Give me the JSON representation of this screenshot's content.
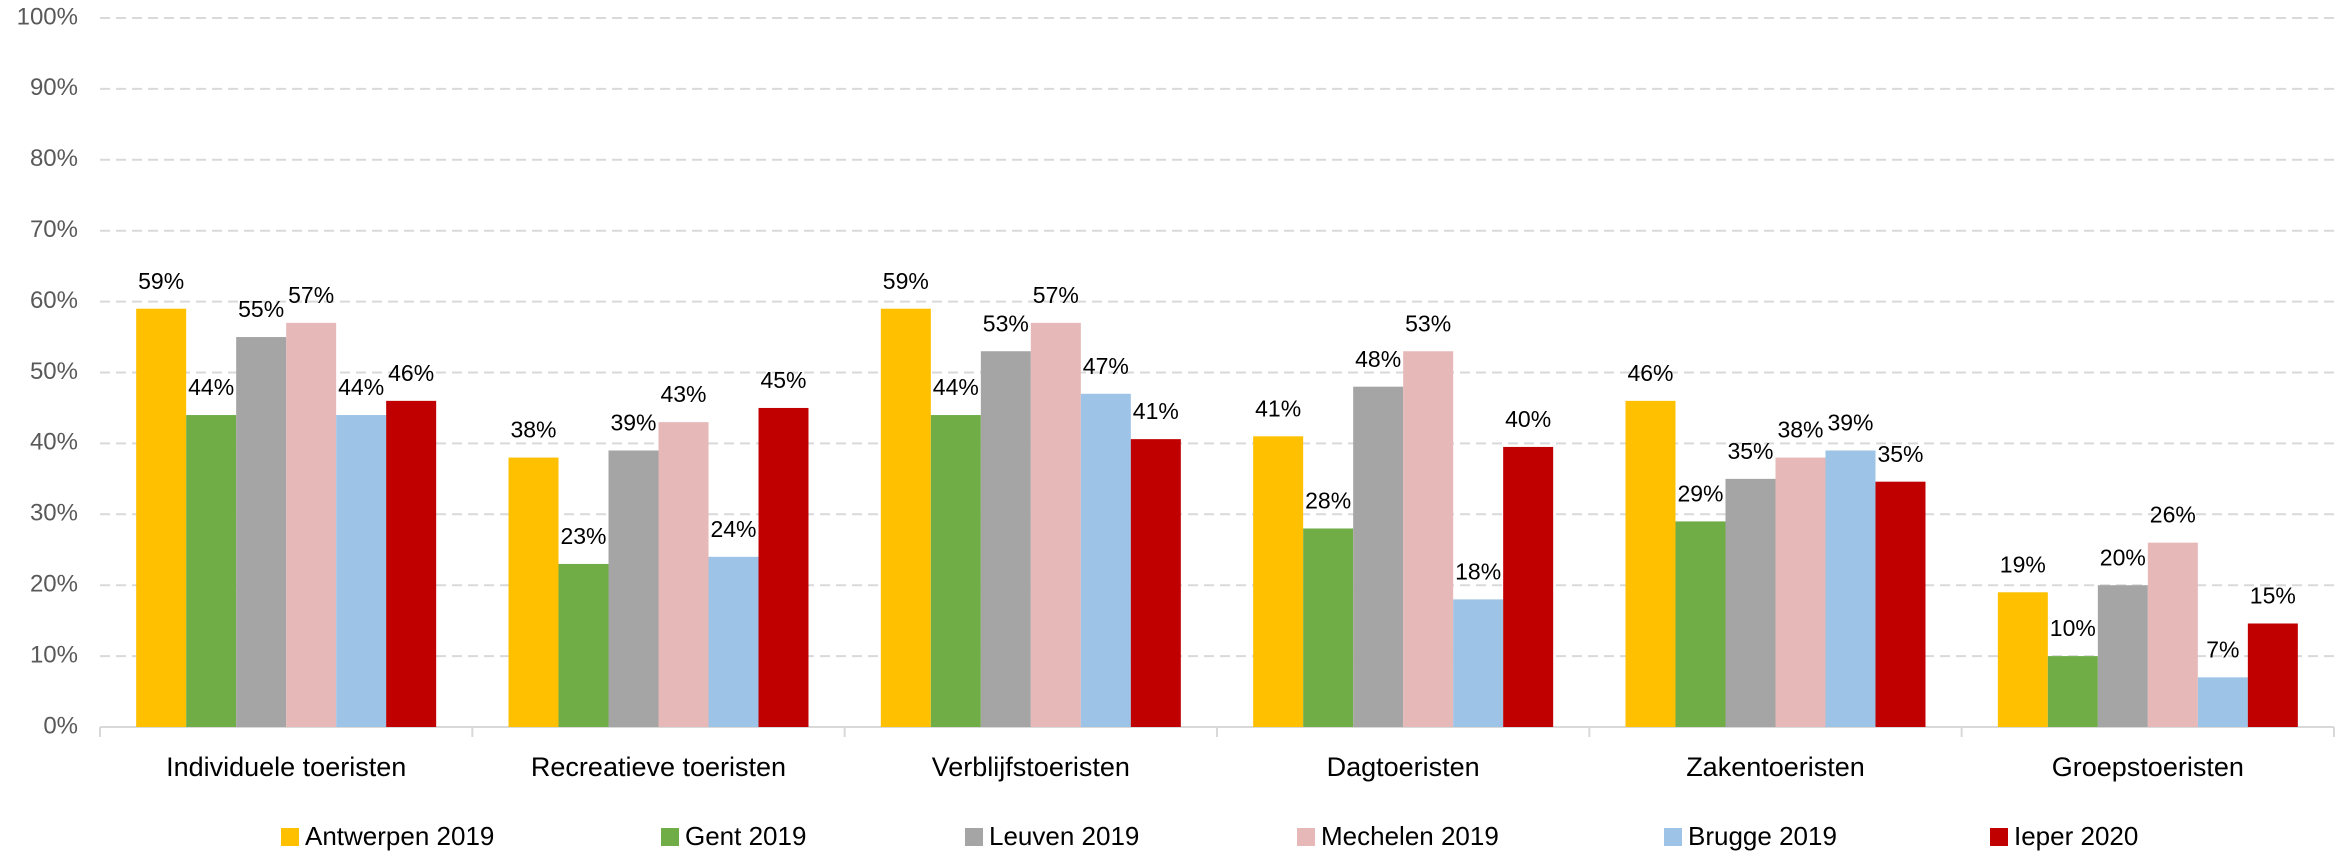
{
  "chart_data": {
    "type": "bar",
    "categories": [
      "Individuele toeristen",
      "Recreatieve toeristen",
      "Verblijfstoeristen",
      "Dagtoeristen",
      "Zakentoeristen",
      "Groepstoeristen"
    ],
    "series": [
      {
        "name": "Antwerpen 2019",
        "color": "#ffc000",
        "values": [
          59,
          38,
          59,
          41,
          46,
          19
        ],
        "value_labels": [
          "59%",
          "38%",
          "59%",
          "41%",
          "46%",
          "19%"
        ]
      },
      {
        "name": "Gent 2019",
        "color": "#70ad47",
        "values": [
          44,
          23,
          44,
          28,
          29,
          10
        ],
        "value_labels": [
          "44%",
          "23%",
          "44%",
          "28%",
          "29%",
          "10%"
        ]
      },
      {
        "name": "Leuven 2019",
        "color": "#a5a5a5",
        "values": [
          55,
          39,
          53,
          48,
          35,
          20
        ],
        "value_labels": [
          "55%",
          "39%",
          "53%",
          "48%",
          "35%",
          "20%"
        ]
      },
      {
        "name": "Mechelen 2019",
        "color": "#e6b8b7",
        "values": [
          57,
          43,
          57,
          53,
          38,
          26
        ],
        "value_labels": [
          "57%",
          "43%",
          "57%",
          "53%",
          "38%",
          "26%"
        ]
      },
      {
        "name": "Brugge 2019",
        "color": "#9dc3e6",
        "values": [
          44,
          24,
          47,
          18,
          39,
          7
        ],
        "value_labels": [
          "44%",
          "24%",
          "47%",
          "18%",
          "39%",
          "7%"
        ]
      },
      {
        "name": "Ieper 2020",
        "color": "#c00000",
        "values": [
          46,
          45,
          40.6,
          39.5,
          34.6,
          14.6
        ],
        "value_labels": [
          "46%",
          "45%",
          "41%",
          "40%",
          "35%",
          "15%"
        ]
      }
    ],
    "ylim": [
      0,
      100
    ],
    "yticks": [
      {
        "value": 0,
        "label": "0%"
      },
      {
        "value": 10,
        "label": "10%"
      },
      {
        "value": 20,
        "label": "20%"
      },
      {
        "value": 30,
        "label": "30%"
      },
      {
        "value": 40,
        "label": "40%"
      },
      {
        "value": 50,
        "label": "50%"
      },
      {
        "value": 60,
        "label": "60%"
      },
      {
        "value": 70,
        "label": "70%"
      },
      {
        "value": 80,
        "label": "80%"
      },
      {
        "value": 90,
        "label": "90%"
      },
      {
        "value": 100,
        "label": "100%"
      }
    ],
    "grid": true,
    "legend": "bottom"
  }
}
